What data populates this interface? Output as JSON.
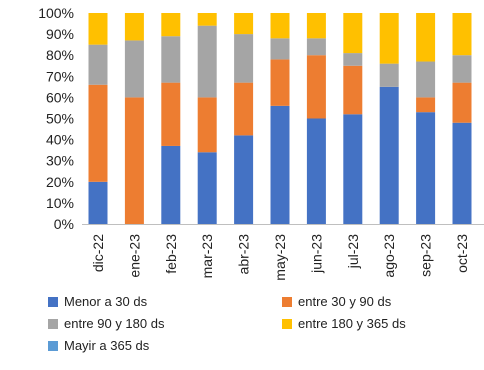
{
  "chart_data": {
    "type": "bar",
    "stacked": true,
    "percent": true,
    "categories": [
      "dic-22",
      "ene-23",
      "feb-23",
      "mar-23",
      "abr-23",
      "may-23",
      "jun-23",
      "jul-23",
      "ago-23",
      "sep-23",
      "oct-23"
    ],
    "ylim": [
      0,
      100
    ],
    "yticks": [
      "0%",
      "10%",
      "20%",
      "30%",
      "40%",
      "50%",
      "60%",
      "70%",
      "80%",
      "90%",
      "100%"
    ],
    "grid": false,
    "legend_position": "bottom",
    "series": [
      {
        "name": "Menor a 30 ds",
        "color": "#4472C4",
        "values": [
          20,
          0,
          37,
          34,
          42,
          56,
          50,
          52,
          65,
          53,
          48
        ]
      },
      {
        "name": "entre 30 y 90 ds",
        "color": "#ED7D31",
        "values": [
          46,
          60,
          30,
          26,
          25,
          22,
          30,
          23,
          0,
          7,
          19
        ]
      },
      {
        "name": "entre 90 y 180 ds",
        "color": "#A5A5A5",
        "values": [
          19,
          27,
          22,
          34,
          23,
          10,
          8,
          6,
          11,
          17,
          13
        ]
      },
      {
        "name": "entre 180 y 365 ds",
        "color": "#FFC000",
        "values": [
          15,
          13,
          11,
          6,
          10,
          12,
          12,
          19,
          24,
          23,
          20
        ]
      },
      {
        "name": "Mayir a 365 ds",
        "color": "#5B9BD5",
        "values": [
          0,
          0,
          0,
          0,
          0,
          0,
          0,
          0,
          0,
          0,
          0
        ]
      }
    ]
  }
}
